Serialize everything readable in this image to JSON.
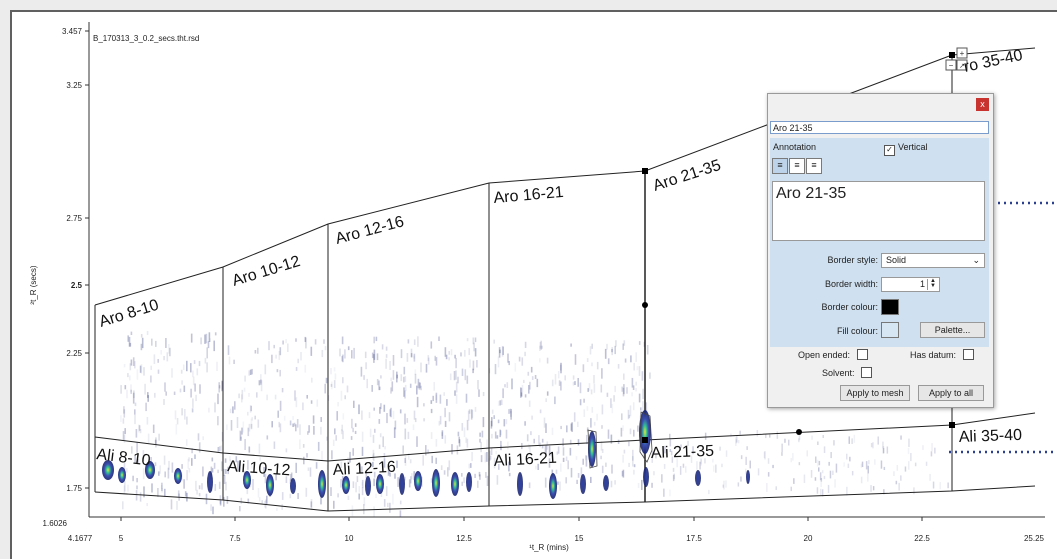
{
  "file_name": "B_170313_3_0.2_secs.tht.rsd",
  "axes": {
    "y_title": "²t_R (secs)",
    "x_title": "¹t_R (mins)",
    "y_ticks": [
      "3.457",
      "3.25",
      "2.75",
      "2.5",
      "2.25",
      "1.75",
      "1.6026"
    ],
    "x_ticks": [
      "4.1677",
      "5",
      "7.5",
      "10",
      "12.5",
      "15",
      "17.5",
      "20",
      "22.5",
      "25.25"
    ]
  },
  "regions": {
    "aromatic": [
      "Aro 8-10",
      "Aro 10-12",
      "Aro 12-16",
      "Aro 16-21",
      "Aro 21-35",
      "ro 35-40"
    ],
    "aliphatic": [
      "Ali 8-10",
      "Ali 10-12",
      "Ali 12-16",
      "Ali 16-21",
      "Ali 21-35",
      "Ali 35-40"
    ]
  },
  "dialog": {
    "close_label": "x",
    "name_value": "Aro 21-35",
    "annotation_label": "Annotation",
    "vertical_label": "Vertical",
    "vertical_checked": true,
    "text_value": "Aro 21-35",
    "border_style_label": "Border style:",
    "border_style_value": "Solid",
    "border_width_label": "Border width:",
    "border_width_value": "1",
    "border_colour_label": "Border colour:",
    "border_colour": "#000000",
    "fill_colour_label": "Fill colour:",
    "fill_colour": "#d6e6f2",
    "palette_label": "Palette...",
    "open_ended_label": "Open ended:",
    "has_datum_label": "Has datum:",
    "solvent_label": "Solvent:",
    "apply_mesh_label": "Apply to mesh",
    "apply_all_label": "Apply to all"
  },
  "colors": {
    "peak_dark": "#15206b",
    "peak_mid": "#3b4fb0",
    "peak_core": "#2fbf8f",
    "peak_hot": "#e8e23a",
    "dotted": "#2a3f8f"
  }
}
